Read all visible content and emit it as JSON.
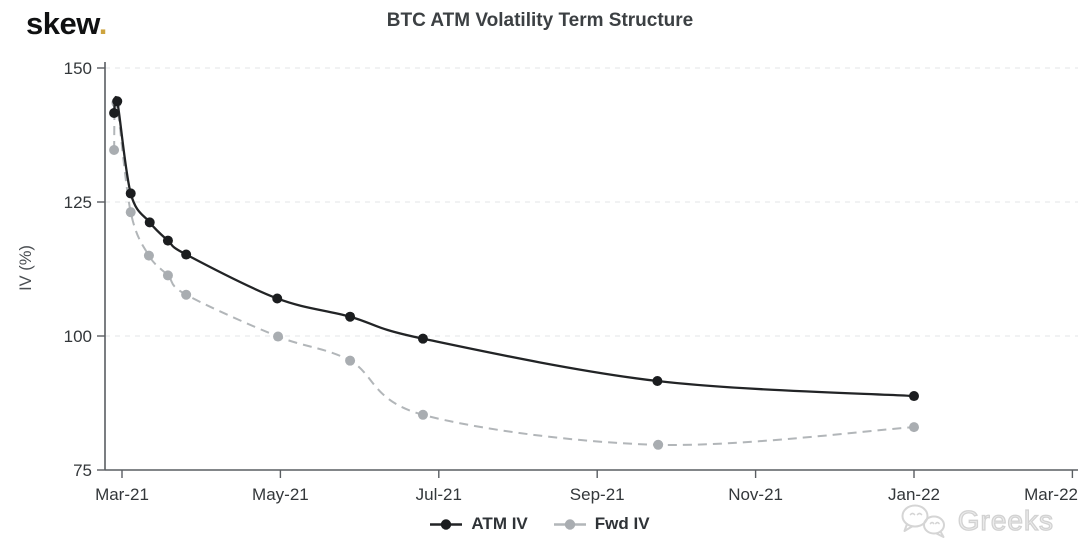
{
  "logo": {
    "brand": "skew",
    "dot": ".",
    "dot_color": "#cda43e"
  },
  "header": {
    "title": "BTC ATM Volatility Term Structure"
  },
  "watermark": {
    "label": "Greeks",
    "icon": "wechat-chat-bubbles-icon"
  },
  "chart_data": {
    "type": "line",
    "title": "BTC ATM Volatility Term Structure",
    "xlabel": "",
    "ylabel": "IV (%)",
    "ylim": [
      75,
      150
    ],
    "yticks": [
      150,
      125,
      100,
      75
    ],
    "grid": {
      "horizontal_dashed_at": [
        150,
        125,
        100
      ]
    },
    "x_axis_unit": "months_after_Mar-21",
    "xticks": [
      {
        "label": "Mar-21",
        "m": 0
      },
      {
        "label": "May-21",
        "m": 2
      },
      {
        "label": "Jul-21",
        "m": 4
      },
      {
        "label": "Sep-21",
        "m": 6
      },
      {
        "label": "Nov-21",
        "m": 8
      },
      {
        "label": "Jan-22",
        "m": 10
      },
      {
        "label": "Mar-22",
        "m": 12,
        "align": "end"
      }
    ],
    "legend_position": "bottom-center",
    "series": [
      {
        "name": "ATM IV",
        "color": "#222426",
        "marker_color": "#1b1d1f",
        "line_style": "solid",
        "x": [
          -0.1,
          -0.06,
          0.11,
          0.35,
          0.58,
          0.81,
          1.96,
          2.88,
          3.8,
          6.76,
          10.0
        ],
        "values": [
          141.6,
          143.8,
          126.6,
          121.2,
          117.8,
          115.2,
          107.0,
          103.6,
          99.5,
          91.6,
          88.8
        ]
      },
      {
        "name": "Fwd IV",
        "color": "#b2b6b9",
        "marker_color": "#a9adb1",
        "line_style": "dashed",
        "x": [
          -0.1,
          -0.07,
          0.11,
          0.34,
          0.58,
          0.81,
          1.97,
          2.88,
          3.8,
          6.77,
          10.0
        ],
        "values": [
          134.7,
          143.5,
          123.1,
          115.0,
          111.3,
          107.7,
          99.9,
          95.4,
          85.3,
          79.7,
          83.0
        ]
      }
    ]
  }
}
